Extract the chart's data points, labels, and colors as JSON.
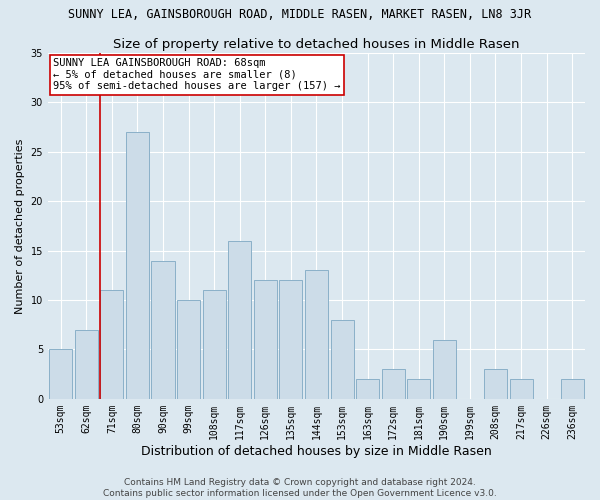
{
  "title": "SUNNY LEA, GAINSBOROUGH ROAD, MIDDLE RASEN, MARKET RASEN, LN8 3JR",
  "subtitle": "Size of property relative to detached houses in Middle Rasen",
  "xlabel": "Distribution of detached houses by size in Middle Rasen",
  "ylabel": "Number of detached properties",
  "categories": [
    "53sqm",
    "62sqm",
    "71sqm",
    "80sqm",
    "90sqm",
    "99sqm",
    "108sqm",
    "117sqm",
    "126sqm",
    "135sqm",
    "144sqm",
    "153sqm",
    "163sqm",
    "172sqm",
    "181sqm",
    "190sqm",
    "199sqm",
    "208sqm",
    "217sqm",
    "226sqm",
    "236sqm"
  ],
  "values": [
    5,
    7,
    11,
    27,
    14,
    10,
    11,
    16,
    12,
    12,
    13,
    8,
    2,
    3,
    2,
    6,
    0,
    3,
    2,
    0,
    2
  ],
  "bar_color": "#ccdce8",
  "bar_edge_color": "#8ab0c8",
  "vline_color": "#cc0000",
  "vline_pos": 1.55,
  "annotation_title": "SUNNY LEA GAINSBOROUGH ROAD: 68sqm",
  "annotation_line1": "← 5% of detached houses are smaller (8)",
  "annotation_line2": "95% of semi-detached houses are larger (157) →",
  "annotation_box_color": "#ffffff",
  "annotation_box_edge": "#cc0000",
  "ylim": [
    0,
    35
  ],
  "yticks": [
    0,
    5,
    10,
    15,
    20,
    25,
    30,
    35
  ],
  "footer1": "Contains HM Land Registry data © Crown copyright and database right 2024.",
  "footer2": "Contains public sector information licensed under the Open Government Licence v3.0.",
  "bg_color": "#dce8f0",
  "plot_bg_color": "#dce8f0",
  "title_fontsize": 8.5,
  "subtitle_fontsize": 9.5,
  "ylabel_fontsize": 8,
  "xlabel_fontsize": 9,
  "tick_fontsize": 7,
  "annotation_fontsize": 7.5,
  "footer_fontsize": 6.5
}
